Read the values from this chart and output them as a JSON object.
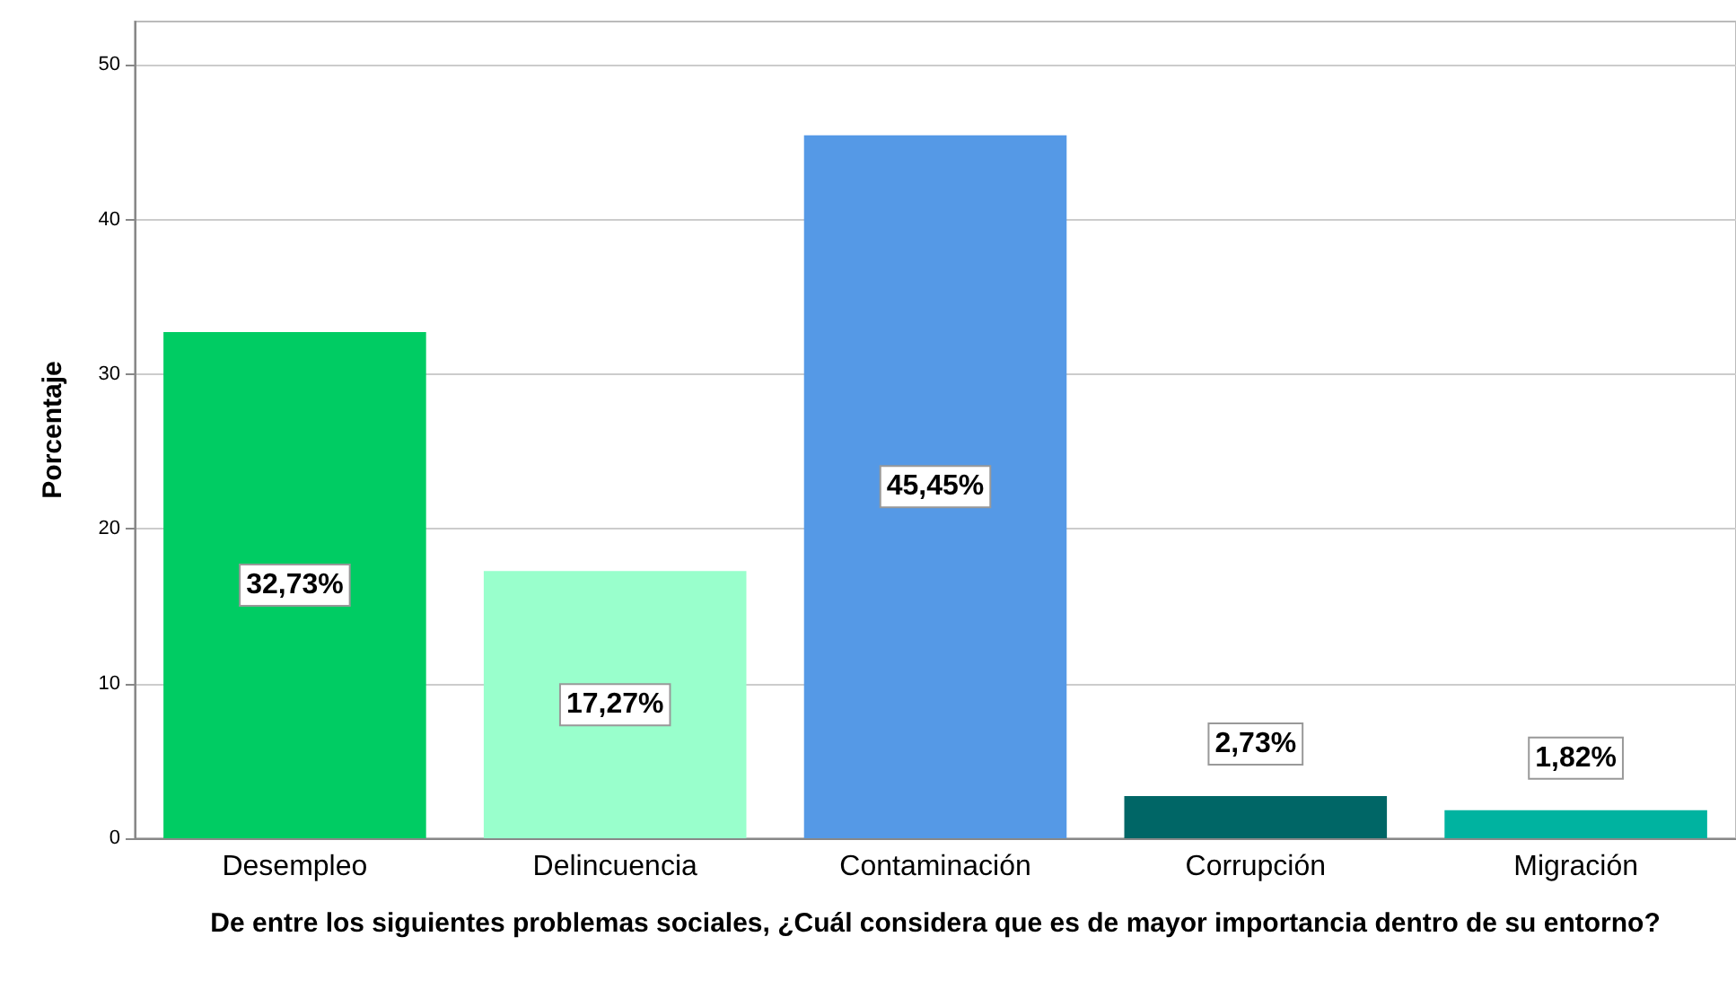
{
  "chart_data": {
    "type": "bar",
    "xlabel": "De entre los siguientes problemas sociales, ¿Cuál considera que es de mayor importancia dentro de su entorno?",
    "ylabel": "Porcentaje",
    "categories": [
      "Desempleo",
      "Delincuencia",
      "Contaminación",
      "Corrupción",
      "Migración"
    ],
    "values": [
      32.73,
      17.27,
      45.45,
      2.73,
      1.82
    ],
    "colors": [
      "#00cc63",
      "#99ffcc",
      "#5599e6",
      "#006666",
      "#00b3a0"
    ],
    "value_labels": [
      "32,73%",
      "17,27%",
      "45,45%",
      "2,73%",
      "1,82%"
    ],
    "ylim": [
      0,
      52.8
    ],
    "yticks": [
      0,
      10,
      20,
      30,
      40,
      50
    ],
    "grid": "y"
  }
}
